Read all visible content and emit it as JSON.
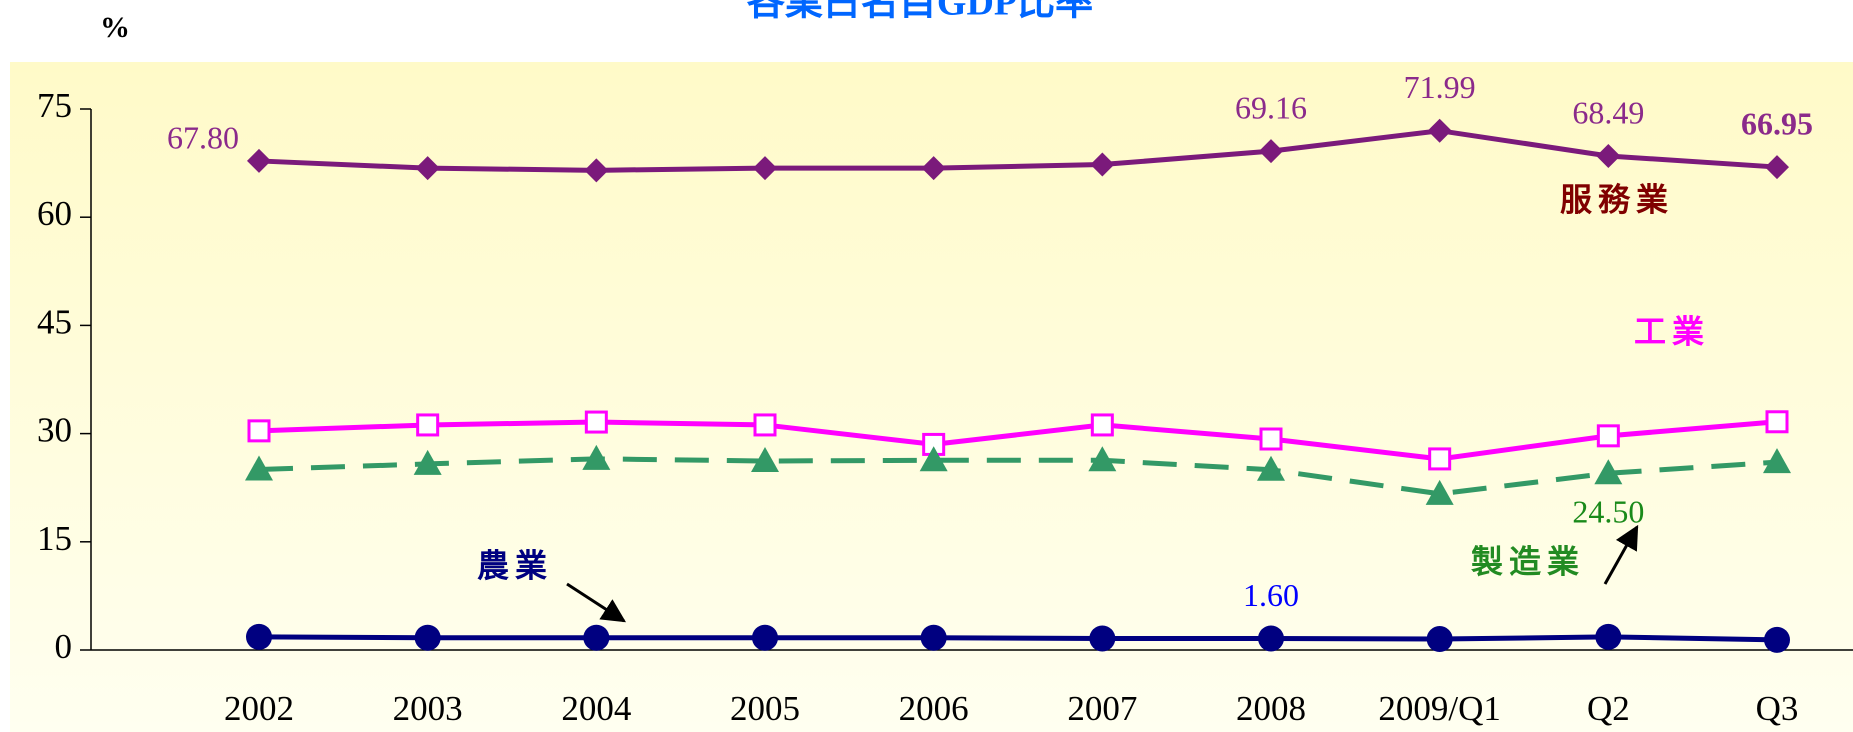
{
  "chart_data": {
    "type": "line",
    "title": "各業占名目GDP比率",
    "y_axis_label": "%",
    "categories": [
      "2002",
      "2003",
      "2004",
      "2005",
      "2006",
      "2007",
      "2008",
      "2009/Q1",
      "Q2",
      "Q3"
    ],
    "ylim": [
      0,
      75
    ],
    "yticks": [
      0,
      15,
      30,
      45,
      60,
      75
    ],
    "series": [
      {
        "name": "服務業",
        "color": "#7b1a7b",
        "marker": "diamond",
        "values": [
          67.8,
          66.8,
          66.5,
          66.8,
          66.8,
          67.3,
          69.16,
          71.99,
          68.49,
          66.95
        ],
        "value_labels": [
          "67.80",
          null,
          null,
          null,
          null,
          null,
          "69.16",
          "71.99",
          "68.49",
          "66.95"
        ]
      },
      {
        "name": "工業",
        "color": "#ff00ff",
        "marker": "square",
        "values": [
          30.38,
          31.2,
          31.6,
          31.2,
          28.5,
          31.2,
          29.25,
          26.49,
          29.69,
          31.64
        ],
        "value_labels": [
          null,
          null,
          null,
          null,
          null,
          null,
          null,
          null,
          null,
          null
        ]
      },
      {
        "name": "製造業",
        "color": "#339966",
        "marker": "triangle",
        "dashed": true,
        "values": [
          25.02,
          25.8,
          26.5,
          26.2,
          26.3,
          26.3,
          24.98,
          21.65,
          24.5,
          26.05
        ],
        "value_labels": [
          null,
          null,
          null,
          null,
          null,
          null,
          null,
          null,
          "24.50",
          null
        ]
      },
      {
        "name": "農業",
        "color": "#000080",
        "marker": "circle",
        "values": [
          1.82,
          1.7,
          1.7,
          1.7,
          1.7,
          1.6,
          1.6,
          1.52,
          1.82,
          1.41
        ],
        "value_labels": [
          null,
          null,
          null,
          null,
          null,
          null,
          "1.60",
          null,
          null,
          null
        ]
      }
    ]
  }
}
